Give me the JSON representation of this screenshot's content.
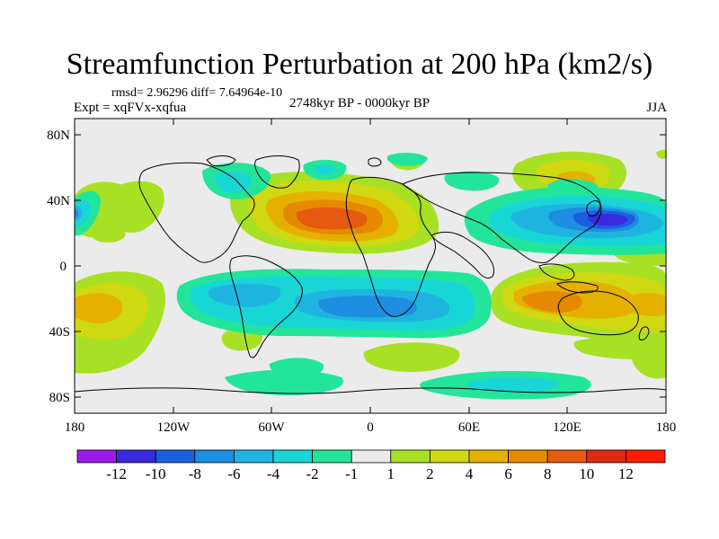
{
  "title": "Streamfunction Perturbation at 200 hPa (km2/s)",
  "rmsd_line": "rmsd= 2.96296 diff= 7.64964e-10",
  "expt_line": "Expt = xqFVx-xqfua",
  "period_line": "2748kyr BP - 0000kyr BP",
  "season": "JJA",
  "lat_ticks": [
    "80N",
    "40N",
    "0",
    "40S",
    "80S"
  ],
  "lon_ticks": [
    "180",
    "120W",
    "60W",
    "0",
    "60E",
    "120E",
    "180"
  ],
  "colorbar": {
    "labels": [
      "-12",
      "-10",
      "-8",
      "-6",
      "-4",
      "-2",
      "-1",
      "1",
      "2",
      "4",
      "6",
      "8",
      "10",
      "12"
    ],
    "colors": [
      "#9b1be8",
      "#3a2ae0",
      "#1a5fdf",
      "#1e8ee0",
      "#1fb4e0",
      "#19d6d6",
      "#22e59b",
      "#ebebeb",
      "#a8e024",
      "#cfd811",
      "#e6b000",
      "#e58a00",
      "#e55a0e",
      "#e02a10",
      "#ff1a00"
    ]
  },
  "colors": {
    "ocean_bg": "#ebebeb",
    "coast": "#000000"
  }
}
